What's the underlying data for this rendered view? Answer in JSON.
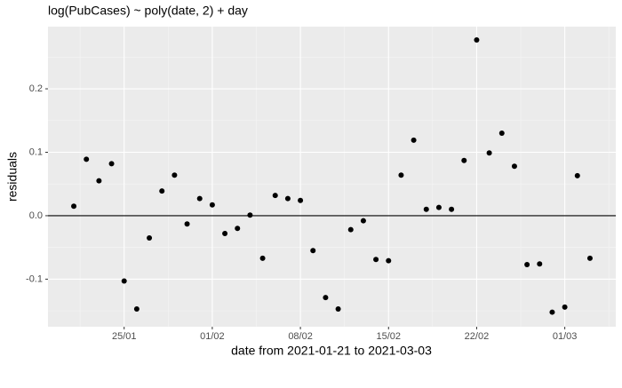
{
  "chart_data": {
    "type": "scatter",
    "title": "log(PubCases) ~ poly(date, 2) + day",
    "x_label": "date from 2021-01-21 to 2021-03-03",
    "y_label": "residuals",
    "x": [
      "21/01",
      "22/01",
      "23/01",
      "24/01",
      "25/01",
      "26/01",
      "27/01",
      "28/01",
      "29/01",
      "30/01",
      "31/01",
      "01/02",
      "02/02",
      "03/02",
      "04/02",
      "05/02",
      "06/02",
      "07/02",
      "08/02",
      "09/02",
      "10/02",
      "11/02",
      "12/02",
      "13/02",
      "14/02",
      "15/02",
      "16/02",
      "17/02",
      "18/02",
      "19/02",
      "20/02",
      "21/02",
      "22/02",
      "23/02",
      "24/02",
      "25/02",
      "26/02",
      "27/02",
      "28/02",
      "01/03",
      "02/03",
      "03/03"
    ],
    "values": [
      0.015,
      0.089,
      0.055,
      0.082,
      -0.103,
      -0.147,
      -0.035,
      0.039,
      0.064,
      -0.013,
      0.027,
      0.017,
      -0.028,
      -0.02,
      0.001,
      -0.067,
      0.032,
      0.027,
      0.024,
      -0.055,
      -0.129,
      -0.147,
      -0.022,
      -0.008,
      -0.069,
      -0.071,
      0.064,
      0.119,
      0.01,
      0.013,
      0.01,
      0.087,
      0.277,
      0.099,
      0.13,
      0.078,
      -0.077,
      -0.076,
      -0.152,
      -0.144,
      0.063,
      -0.067
    ],
    "color": "#000000",
    "xticks": [
      "25/01",
      "01/02",
      "08/02",
      "15/02",
      "22/02",
      "01/03"
    ],
    "ylim": [
      -0.175,
      0.298
    ],
    "yticks": [
      -0.1,
      {
        "value": 0,
        "label": "0.0"
      },
      0.1,
      0.2
    ],
    "hline": 0,
    "grid": true
  }
}
